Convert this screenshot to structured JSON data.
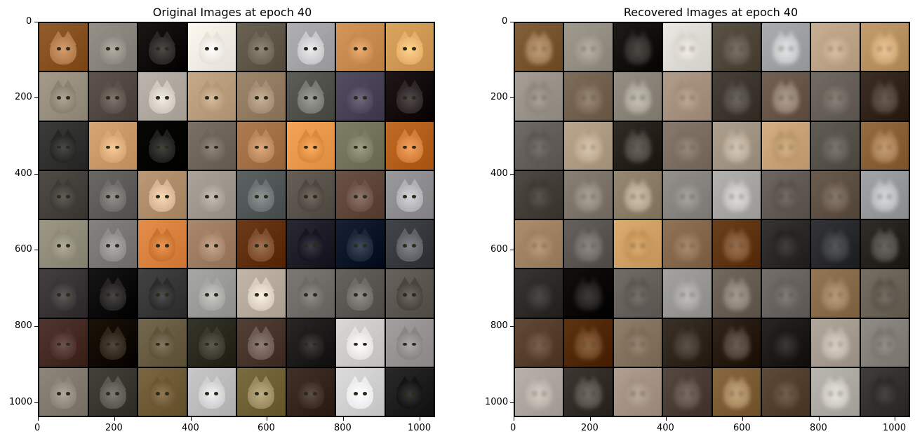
{
  "panels": [
    {
      "title": "Original Images at epoch 40",
      "x_ticks": [
        "0",
        "200",
        "400",
        "600",
        "800",
        "1000"
      ],
      "y_ticks": [
        "0",
        "200",
        "400",
        "600",
        "800",
        "1000"
      ]
    },
    {
      "title": "Recovered Images at epoch 40",
      "x_ticks": [
        "0",
        "200",
        "400",
        "600",
        "800",
        "1000"
      ],
      "y_ticks": [
        "0",
        "200",
        "400",
        "600",
        "800",
        "1000"
      ]
    }
  ],
  "grid": {
    "rows": 8,
    "cols": 8
  },
  "tile_palette": [
    "#b07a4a",
    "#8e8a82",
    "#2a2624",
    "#e8e4dc",
    "#6d6456",
    "#c9c9cb",
    "#c98a4e",
    "#e7b06a",
    "#8a8171",
    "#5b514a",
    "#cfc9c0",
    "#b59878",
    "#a48d72",
    "#7a7a74",
    "#4b465a",
    "#2f2727",
    "#262625",
    "#d6a674",
    "#1f1f1c",
    "#6e6457",
    "#b8865a",
    "#d98a3c",
    "#7b7a63",
    "#d37e3a",
    "#3e3a35",
    "#6f6d6a",
    "#d7b592",
    "#a39a92",
    "#6b7070",
    "#4f4840",
    "#6a5247",
    "#b1b0b3",
    "#8f8a78",
    "#8e8c8a",
    "#c9722f",
    "#a48368",
    "#7d4d2e",
    "#171620",
    "#1c2538",
    "#5d6064",
    "#3a3637",
    "#242222",
    "#2b2b2b",
    "#a6a6a2",
    "#d8cdbf",
    "#6d6a66",
    "#6e6a66",
    "#4a463f",
    "#4a3028",
    "#2e2418",
    "#5f5339",
    "#38382d",
    "#6d5b52",
    "#1e1b1b",
    "#e6e4e2",
    "#8a8686",
    "#8c8478",
    "#5a5750",
    "#6b5632",
    "#cfcfcf",
    "#9a8a60",
    "#3a2a22",
    "#ececec",
    "#141414"
  ],
  "tile_palette_recovered": [
    "#a17d58",
    "#9a9488",
    "#2f2b28",
    "#d6d2cc",
    "#5d5447",
    "#c4c6c8",
    "#bda387",
    "#cfa878",
    "#8c857c",
    "#7b6a58",
    "#a9a398",
    "#a08c78",
    "#4e4840",
    "#907f70",
    "#6b645c",
    "#4c3e33",
    "#5a5550",
    "#bba88f",
    "#4a443f",
    "#7b6d60",
    "#b8aa98",
    "#b89468",
    "#5e5a52",
    "#a87f55",
    "#3e3833",
    "#8e857a",
    "#b3a48e",
    "#8b8783",
    "#c2c0bd",
    "#57504a",
    "#6b5c50",
    "#b9bcbf",
    "#9e8060",
    "#6f6a66",
    "#c09054",
    "#8c6f52",
    "#7c5231",
    "#242220",
    "#38393c",
    "#4c4844",
    "#2f2c2a",
    "#1f1c1a",
    "#5b5550",
    "#a3a29f",
    "#8a7f74",
    "#65605c",
    "#9c7f5e",
    "#5a5147",
    "#5d4430",
    "#6d4522",
    "#7b6a56",
    "#3e342b",
    "#4c3f35",
    "#1d1a18",
    "#bdb3a8",
    "#79736e",
    "#b7b0a8",
    "#534d47",
    "#a08f80",
    "#5d5048",
    "#a6875d",
    "#574432",
    "#cac6c0",
    "#2b2826"
  ]
}
